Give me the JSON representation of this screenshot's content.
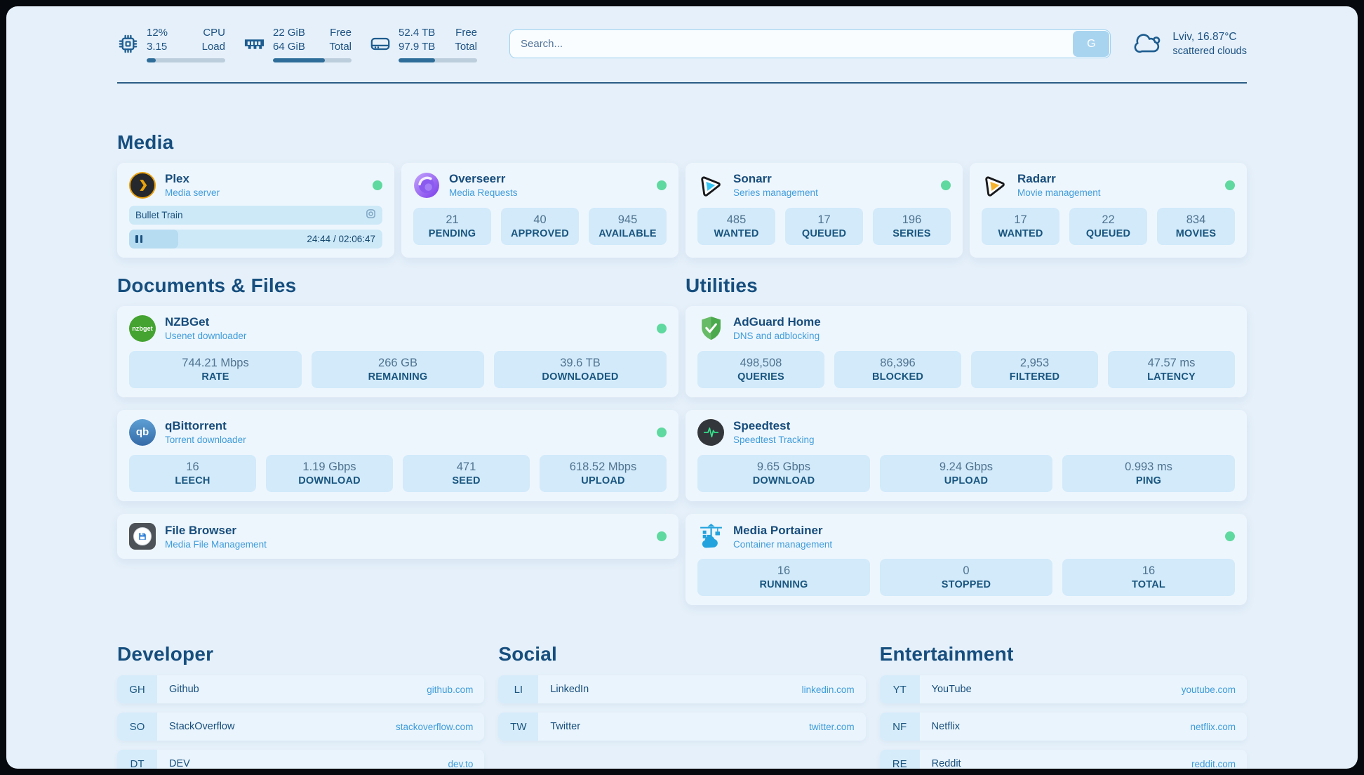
{
  "colors": {
    "page_background": "#e5f0fa",
    "card_background": "#eef6fd",
    "stat_box_blue": "#d2eafa",
    "accent_navy": "#174d7c",
    "link_blue": "#3f9cdb",
    "status_online_green": "#5fd99f",
    "progress_fill": "#2e6d99"
  },
  "topbar": {
    "cpu": {
      "icon": "cpu-chip-icon",
      "value_top": "12%",
      "value_bottom": "3.15",
      "label_top": "CPU",
      "label_bottom": "Load",
      "progress_pct": 12
    },
    "memory": {
      "icon": "ram-icon",
      "value_top": "22 GiB",
      "value_bottom": "64 GiB",
      "label_top": "Free",
      "label_bottom": "Total",
      "progress_pct": 66
    },
    "disk": {
      "icon": "disk-icon",
      "value_top": "52.4 TB",
      "value_bottom": "97.9 TB",
      "label_top": "Free",
      "label_bottom": "Total",
      "progress_pct": 46
    },
    "search": {
      "placeholder": "Search...",
      "provider_button": "G"
    },
    "weather": {
      "icon": "scattered-clouds-icon",
      "location_temp": "Lviv, 16.87°C",
      "condition": "scattered clouds"
    }
  },
  "sections": {
    "media": {
      "title": "Media",
      "plex": {
        "name": "Plex",
        "subtitle": "Media server",
        "online": true,
        "icon": "plex-icon",
        "now_playing": {
          "title": "Bullet Train",
          "state": "paused",
          "time": "24:44 / 02:06:47",
          "progress_pct": 19.5
        }
      },
      "overseerr": {
        "name": "Overseerr",
        "subtitle": "Media Requests",
        "online": true,
        "icon": "overseerr-icon",
        "stats": [
          {
            "value": "21",
            "label": "PENDING"
          },
          {
            "value": "40",
            "label": "APPROVED"
          },
          {
            "value": "945",
            "label": "AVAILABLE"
          }
        ]
      },
      "sonarr": {
        "name": "Sonarr",
        "subtitle": "Series management",
        "online": true,
        "icon": "sonarr-icon",
        "stats": [
          {
            "value": "485",
            "label": "WANTED"
          },
          {
            "value": "17",
            "label": "QUEUED"
          },
          {
            "value": "196",
            "label": "SERIES"
          }
        ]
      },
      "radarr": {
        "name": "Radarr",
        "subtitle": "Movie management",
        "online": true,
        "icon": "radarr-icon",
        "stats": [
          {
            "value": "17",
            "label": "WANTED"
          },
          {
            "value": "22",
            "label": "QUEUED"
          },
          {
            "value": "834",
            "label": "MOVIES"
          }
        ]
      }
    },
    "documents": {
      "title": "Documents & Files",
      "nzbget": {
        "name": "NZBGet",
        "subtitle": "Usenet downloader",
        "online": true,
        "icon": "nzbget-icon",
        "icon_text": "nzbget",
        "stats": [
          {
            "value": "744.21 Mbps",
            "label": "RATE"
          },
          {
            "value": "266 GB",
            "label": "REMAINING"
          },
          {
            "value": "39.6 TB",
            "label": "DOWNLOADED"
          }
        ]
      },
      "qbittorrent": {
        "name": "qBittorrent",
        "subtitle": "Torrent downloader",
        "online": true,
        "icon": "qbittorrent-icon",
        "icon_text": "qb",
        "stats": [
          {
            "value": "16",
            "label": "LEECH"
          },
          {
            "value": "1.19 Gbps",
            "label": "DOWNLOAD"
          },
          {
            "value": "471",
            "label": "SEED"
          },
          {
            "value": "618.52 Mbps",
            "label": "UPLOAD"
          }
        ]
      },
      "filebrowser": {
        "name": "File Browser",
        "subtitle": "Media File Management",
        "online": true,
        "icon": "filebrowser-icon"
      }
    },
    "utilities": {
      "title": "Utilities",
      "adguard": {
        "name": "AdGuard Home",
        "subtitle": "DNS and adblocking",
        "online": false,
        "icon": "adguard-shield-icon",
        "stats": [
          {
            "value": "498,508",
            "label": "QUERIES"
          },
          {
            "value": "86,396",
            "label": "BLOCKED"
          },
          {
            "value": "2,953",
            "label": "FILTERED"
          },
          {
            "value": "47.57 ms",
            "label": "LATENCY"
          }
        ]
      },
      "speedtest": {
        "name": "Speedtest",
        "subtitle": "Speedtest Tracking",
        "online": false,
        "icon": "speedtest-pulse-icon",
        "stats": [
          {
            "value": "9.65 Gbps",
            "label": "DOWNLOAD"
          },
          {
            "value": "9.24 Gbps",
            "label": "UPLOAD"
          },
          {
            "value": "0.993 ms",
            "label": "PING"
          }
        ]
      },
      "portainer": {
        "name": "Media Portainer",
        "subtitle": "Container management",
        "online": true,
        "icon": "portainer-crane-icon",
        "stats": [
          {
            "value": "16",
            "label": "RUNNING"
          },
          {
            "value": "0",
            "label": "STOPPED"
          },
          {
            "value": "16",
            "label": "TOTAL"
          }
        ]
      }
    }
  },
  "bookmarks": {
    "developer": {
      "title": "Developer",
      "items": [
        {
          "abbr": "GH",
          "name": "Github",
          "url": "github.com"
        },
        {
          "abbr": "SO",
          "name": "StackOverflow",
          "url": "stackoverflow.com"
        },
        {
          "abbr": "DT",
          "name": "DEV",
          "url": "dev.to"
        }
      ]
    },
    "social": {
      "title": "Social",
      "items": [
        {
          "abbr": "LI",
          "name": "LinkedIn",
          "url": "linkedin.com"
        },
        {
          "abbr": "TW",
          "name": "Twitter",
          "url": "twitter.com"
        }
      ]
    },
    "entertainment": {
      "title": "Entertainment",
      "items": [
        {
          "abbr": "YT",
          "name": "YouTube",
          "url": "youtube.com"
        },
        {
          "abbr": "NF",
          "name": "Netflix",
          "url": "netflix.com"
        },
        {
          "abbr": "RE",
          "name": "Reddit",
          "url": "reddit.com"
        }
      ]
    }
  }
}
